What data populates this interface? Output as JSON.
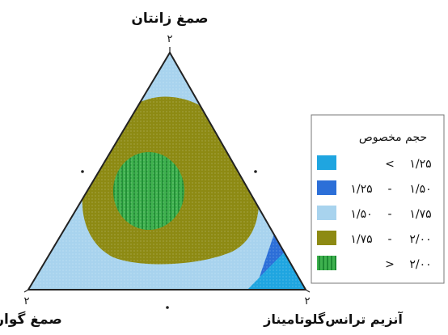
{
  "chart_data": {
    "type": "ternary-contour",
    "components": [
      {
        "name": "صمغ زانتان",
        "max": "۲"
      },
      {
        "name": "صمغ گوار",
        "max": "۲"
      },
      {
        "name": "آنزیم ترانس‌گلوتامیناز",
        "max": "۲"
      }
    ],
    "legend": {
      "title": "حجم مخصوص",
      "placement": "right",
      "entries": [
        {
          "symbol": "<",
          "low": "",
          "high": "۱/۲۵",
          "color": "#1fa5e0"
        },
        {
          "symbol": "-",
          "low": "۱/۲۵",
          "high": "۱/۵۰",
          "color": "#2c6fd8"
        },
        {
          "symbol": "-",
          "low": "۱/۵۰",
          "high": "۱/۷۵",
          "color": "#a8d3ee"
        },
        {
          "symbol": "-",
          "low": "۱/۷۵",
          "high": "۲/۰۰",
          "color": "#8d8a13"
        },
        {
          "symbol": ">",
          "low": "",
          "high": "۲/۰۰",
          "color": "#3fb24f"
        }
      ]
    }
  }
}
